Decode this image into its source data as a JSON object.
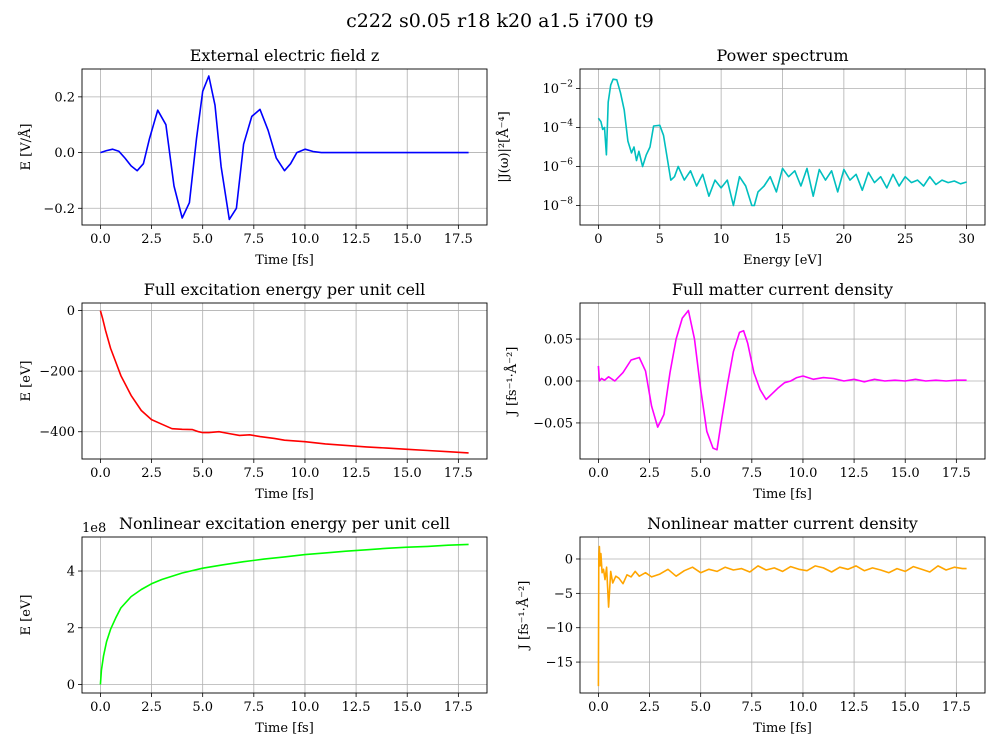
{
  "figure": {
    "title": "c222 s0.05 r18 k20 a1.5 i700 t9"
  },
  "chart_data": [
    {
      "type": "line",
      "title": "External electric field z",
      "xlabel": "Time [fs]",
      "ylabel": "E [V/Å]",
      "xlim": [
        -0.9,
        18.9
      ],
      "ylim": [
        -0.26,
        0.3
      ],
      "xticks": [
        0,
        2.5,
        5,
        7.5,
        10,
        12.5,
        15,
        17.5
      ],
      "xticklabels": [
        "0.0",
        "2.5",
        "5.0",
        "7.5",
        "10.0",
        "12.5",
        "15.0",
        "17.5"
      ],
      "yticks": [
        -0.2,
        0,
        0.2
      ],
      "yticklabels": [
        "−0.2",
        "0.0",
        "0.2"
      ],
      "grid": true,
      "series": [
        {
          "color": "#0000ff",
          "x": [
            0,
            0.3,
            0.6,
            0.9,
            1.2,
            1.5,
            1.8,
            2.1,
            2.4,
            2.8,
            3.2,
            3.6,
            4.0,
            4.35,
            4.7,
            5.0,
            5.3,
            5.6,
            5.9,
            6.3,
            6.65,
            7.0,
            7.4,
            7.8,
            8.2,
            8.6,
            9.0,
            9.3,
            9.6,
            10.0,
            10.4,
            10.8,
            11.2,
            12,
            14,
            16,
            18
          ],
          "y": [
            0,
            0.007,
            0.012,
            0.005,
            -0.02,
            -0.048,
            -0.065,
            -0.04,
            0.05,
            0.152,
            0.1,
            -0.12,
            -0.235,
            -0.18,
            0.05,
            0.22,
            0.275,
            0.17,
            -0.05,
            -0.24,
            -0.2,
            0.03,
            0.13,
            0.155,
            0.08,
            -0.02,
            -0.065,
            -0.04,
            0,
            0.012,
            0.004,
            0,
            0,
            0,
            0,
            0,
            0
          ]
        }
      ]
    },
    {
      "type": "line",
      "title": "Power spectrum",
      "xlabel": "Energy [eV]",
      "ylabel": "|J(ω)|²[Å⁻⁴]",
      "yscale": "log",
      "xlim": [
        -1.5,
        31.5
      ],
      "ylim": [
        1e-09,
        0.1
      ],
      "xticks": [
        0,
        5,
        10,
        15,
        20,
        25,
        30
      ],
      "xticklabels": [
        "0",
        "5",
        "10",
        "15",
        "20",
        "25",
        "30"
      ],
      "yticks": [
        1e-08,
        1e-06,
        0.0001,
        0.01
      ],
      "yticklabels": [
        "10",
        "10",
        "10",
        "10"
      ],
      "ytickexponents": [
        "−8",
        "−6",
        "−4",
        "−2"
      ],
      "grid": true,
      "series": [
        {
          "color": "#00bfbf",
          "x": [
            0,
            0.2,
            0.35,
            0.5,
            0.65,
            0.8,
            1.0,
            1.2,
            1.5,
            1.8,
            2.1,
            2.4,
            2.7,
            2.9,
            3.1,
            3.3,
            3.6,
            3.9,
            4.2,
            4.5,
            5.0,
            5.3,
            5.6,
            5.9,
            6.2,
            6.5,
            7.0,
            7.5,
            8.0,
            8.5,
            9.0,
            9.5,
            10.0,
            10.5,
            11.0,
            11.5,
            12.0,
            12.5,
            12.7,
            13.0,
            13.5,
            14.0,
            14.5,
            15.0,
            15.5,
            16.0,
            16.5,
            17.0,
            17.5,
            18.0,
            18.5,
            19.0,
            19.5,
            20.0,
            20.5,
            21.0,
            21.5,
            22.0,
            22.5,
            23.0,
            23.5,
            24.0,
            24.5,
            25.0,
            25.5,
            26.0,
            26.5,
            27.0,
            27.5,
            28.0,
            28.5,
            29.0,
            29.5,
            30.0
          ],
          "y": [
            0.0003,
            0.0002,
            8e-05,
            0.0001,
            4e-06,
            0.002,
            0.015,
            0.03,
            0.028,
            0.006,
            0.0008,
            2e-05,
            5e-06,
            1e-05,
            2e-06,
            6e-06,
            1e-06,
            4e-06,
            1e-05,
            0.00012,
            0.00013,
            4e-05,
            3e-06,
            2e-07,
            3e-07,
            1e-06,
            2e-07,
            6e-07,
            1e-07,
            4e-07,
            3e-08,
            2e-07,
            8e-08,
            2e-07,
            1e-08,
            3e-07,
            1e-07,
            1e-08,
            1e-08,
            5e-08,
            1e-07,
            3e-07,
            5e-08,
            8e-07,
            3e-07,
            6e-07,
            1e-07,
            8e-07,
            3e-08,
            7e-07,
            2e-07,
            6e-07,
            5e-08,
            7e-07,
            2e-07,
            4e-07,
            6e-08,
            5e-07,
            1.5e-07,
            3e-07,
            8e-08,
            4e-07,
            1e-07,
            3e-07,
            1.5e-07,
            2e-07,
            1e-07,
            3e-07,
            1.2e-07,
            2e-07,
            1.5e-07,
            1.8e-07,
            1.3e-07,
            1.6e-07
          ]
        }
      ]
    },
    {
      "type": "line",
      "title": "Full excitation energy per unit cell",
      "xlabel": "Time [fs]",
      "ylabel": "E [eV]",
      "xlim": [
        -0.9,
        18.9
      ],
      "ylim": [
        -490,
        25
      ],
      "xticks": [
        0,
        2.5,
        5,
        7.5,
        10,
        12.5,
        15,
        17.5
      ],
      "xticklabels": [
        "0.0",
        "2.5",
        "5.0",
        "7.5",
        "10.0",
        "12.5",
        "15.0",
        "17.5"
      ],
      "yticks": [
        -400,
        -200,
        0
      ],
      "yticklabels": [
        "−400",
        "−200",
        "0"
      ],
      "grid": true,
      "series": [
        {
          "color": "#ff0000",
          "x": [
            0,
            0.1,
            0.25,
            0.5,
            0.75,
            1.0,
            1.5,
            2.0,
            2.5,
            3.0,
            3.5,
            4.0,
            4.5,
            4.8,
            5.0,
            5.3,
            5.8,
            6.3,
            6.8,
            7.3,
            7.8,
            8.5,
            9.0,
            10,
            11,
            12,
            13,
            14,
            15,
            16,
            17,
            18
          ],
          "y": [
            0,
            -25,
            -65,
            -125,
            -170,
            -215,
            -280,
            -330,
            -360,
            -375,
            -390,
            -392,
            -393,
            -400,
            -403,
            -403,
            -400,
            -406,
            -412,
            -410,
            -416,
            -422,
            -428,
            -433,
            -440,
            -445,
            -450,
            -454,
            -458,
            -462,
            -466,
            -470
          ]
        }
      ]
    },
    {
      "type": "line",
      "title": "Full matter current density",
      "xlabel": "Time [fs]",
      "ylabel": "J [fs⁻¹·Å⁻²]",
      "xlim": [
        -0.9,
        18.9
      ],
      "ylim": [
        -0.093,
        0.093
      ],
      "xticks": [
        0,
        2.5,
        5,
        7.5,
        10,
        12.5,
        15,
        17.5
      ],
      "xticklabels": [
        "0.0",
        "2.5",
        "5.0",
        "7.5",
        "10.0",
        "12.5",
        "15.0",
        "17.5"
      ],
      "yticks": [
        -0.05,
        0,
        0.05
      ],
      "yticklabels": [
        "−0.05",
        "0.00",
        "0.05"
      ],
      "grid": true,
      "series": [
        {
          "color": "#ff00ff",
          "x": [
            0,
            0.05,
            0.15,
            0.3,
            0.5,
            0.8,
            1.2,
            1.6,
            2.0,
            2.3,
            2.6,
            2.9,
            3.2,
            3.5,
            3.8,
            4.1,
            4.4,
            4.7,
            5.0,
            5.3,
            5.6,
            5.8,
            6.0,
            6.3,
            6.6,
            6.9,
            7.1,
            7.3,
            7.6,
            7.9,
            8.2,
            8.5,
            8.8,
            9.1,
            9.4,
            9.7,
            10.0,
            10.5,
            11.0,
            11.5,
            12,
            12.5,
            13,
            13.5,
            14,
            14.5,
            15,
            15.5,
            16,
            16.5,
            17,
            17.5,
            18
          ],
          "y": [
            0.018,
            0.0,
            0.003,
            0.001,
            0.005,
            0.0,
            0.01,
            0.025,
            0.028,
            0.012,
            -0.03,
            -0.055,
            -0.04,
            0.01,
            0.05,
            0.075,
            0.084,
            0.05,
            -0.01,
            -0.06,
            -0.08,
            -0.082,
            -0.05,
            -0.005,
            0.035,
            0.058,
            0.06,
            0.045,
            0.01,
            -0.01,
            -0.022,
            -0.015,
            -0.008,
            -0.002,
            0.0,
            0.004,
            0.006,
            0.002,
            0.004,
            0.003,
            0.0,
            0.002,
            -0.001,
            0.002,
            0.0,
            0.001,
            0.0,
            0.002,
            0.0,
            0.001,
            0.0,
            0.001,
            0.001
          ]
        }
      ]
    },
    {
      "type": "line",
      "title": "Nonlinear excitation energy per unit cell",
      "xlabel": "Time [fs]",
      "ylabel": "E [eV]",
      "offset_label": "1e8",
      "xlim": [
        -0.9,
        18.9
      ],
      "ylim": [
        -0.3,
        5.2
      ],
      "xticks": [
        0,
        2.5,
        5,
        7.5,
        10,
        12.5,
        15,
        17.5
      ],
      "xticklabels": [
        "0.0",
        "2.5",
        "5.0",
        "7.5",
        "10.0",
        "12.5",
        "15.0",
        "17.5"
      ],
      "yticks": [
        0,
        2,
        4
      ],
      "yticklabels": [
        "0",
        "2",
        "4"
      ],
      "grid": true,
      "series": [
        {
          "color": "#00ff00",
          "x": [
            0,
            0.05,
            0.15,
            0.3,
            0.5,
            0.75,
            1.0,
            1.5,
            2.0,
            2.5,
            3.0,
            4.0,
            5.0,
            6.0,
            7.0,
            8.0,
            9.0,
            10,
            11,
            12,
            13,
            14,
            15,
            16,
            17,
            18
          ],
          "y": [
            0,
            0.5,
            1.0,
            1.5,
            1.95,
            2.35,
            2.7,
            3.1,
            3.35,
            3.55,
            3.7,
            3.93,
            4.1,
            4.22,
            4.33,
            4.42,
            4.5,
            4.58,
            4.64,
            4.7,
            4.75,
            4.8,
            4.84,
            4.87,
            4.91,
            4.94
          ]
        }
      ]
    },
    {
      "type": "line",
      "title": "Nonlinear matter current density",
      "xlabel": "Time [fs]",
      "ylabel": "J [fs⁻¹·Å⁻²]",
      "xlim": [
        -0.9,
        18.9
      ],
      "ylim": [
        -19.5,
        3.2
      ],
      "xticks": [
        0,
        2.5,
        5,
        7.5,
        10,
        12.5,
        15,
        17.5
      ],
      "xticklabels": [
        "0.0",
        "2.5",
        "5.0",
        "7.5",
        "10.0",
        "12.5",
        "15.0",
        "17.5"
      ],
      "yticks": [
        -15,
        -10,
        -5,
        0
      ],
      "yticklabels": [
        "−15",
        "−10",
        "−5",
        "0"
      ],
      "grid": true,
      "series": [
        {
          "color": "#ffa500",
          "x": [
            0,
            0.02,
            0.05,
            0.08,
            0.12,
            0.18,
            0.25,
            0.32,
            0.4,
            0.5,
            0.6,
            0.7,
            0.85,
            1.0,
            1.2,
            1.4,
            1.6,
            1.8,
            2.0,
            2.3,
            2.6,
            3.0,
            3.4,
            3.8,
            4.2,
            4.6,
            5.0,
            5.4,
            5.8,
            6.2,
            6.6,
            7.0,
            7.4,
            7.8,
            8.2,
            8.6,
            9.0,
            9.4,
            9.8,
            10.2,
            10.6,
            11.0,
            11.4,
            11.8,
            12.2,
            12.6,
            13.0,
            13.4,
            13.8,
            14.2,
            14.6,
            15.0,
            15.4,
            15.8,
            16.2,
            16.6,
            17.0,
            17.4,
            17.8,
            18.0
          ],
          "y": [
            -18.5,
            0.5,
            1.8,
            -1,
            0.8,
            -2,
            -1.5,
            -3,
            -1.2,
            -7,
            -1.8,
            -3.5,
            -2.5,
            -2.8,
            -3.6,
            -2.3,
            -2.6,
            -1.8,
            -2.5,
            -2.0,
            -2.6,
            -2.2,
            -1.5,
            -2.5,
            -1.7,
            -1.2,
            -2.0,
            -1.5,
            -1.8,
            -1.2,
            -1.6,
            -1.4,
            -1.9,
            -1.0,
            -1.6,
            -1.3,
            -1.8,
            -1.1,
            -1.5,
            -1.7,
            -1.0,
            -1.3,
            -1.9,
            -1.2,
            -1.5,
            -1.0,
            -1.7,
            -1.3,
            -1.6,
            -2.0,
            -1.4,
            -1.8,
            -1.1,
            -1.5,
            -1.9,
            -1.0,
            -1.6,
            -1.2,
            -1.4,
            -1.4
          ]
        }
      ]
    }
  ]
}
